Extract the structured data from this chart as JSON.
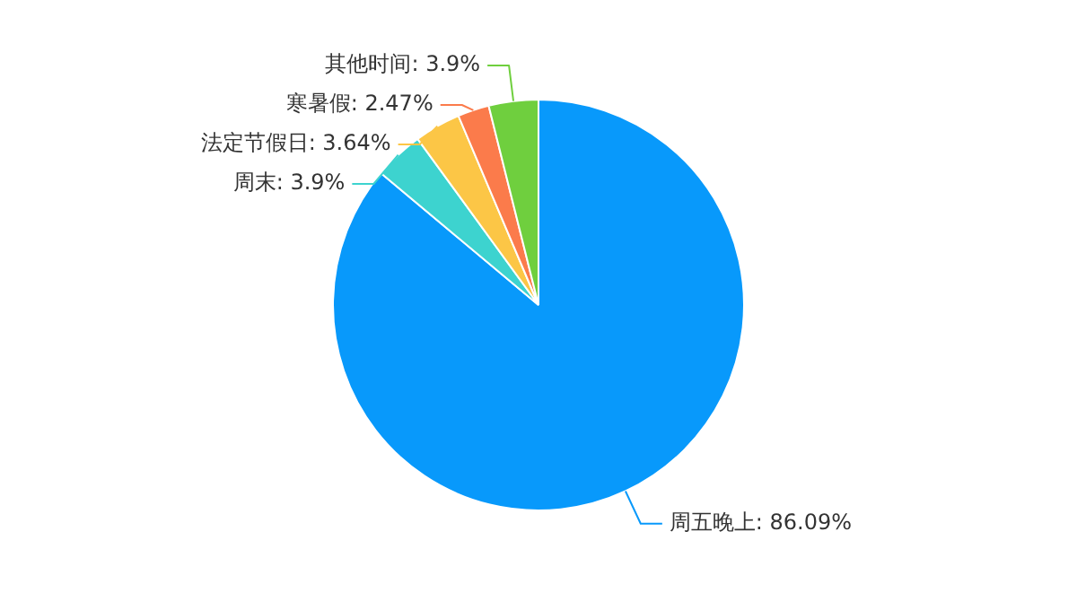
{
  "chart_data": {
    "type": "pie",
    "categories": [
      "周五晚上",
      "周末",
      "法定节假日",
      "寒暑假",
      "其他时间"
    ],
    "values": [
      86.09,
      3.9,
      3.64,
      2.47,
      3.9
    ],
    "value_labels": [
      "86.09%",
      "3.9%",
      "3.64%",
      "2.47%",
      "3.9%"
    ],
    "colors": [
      "#0899fb",
      "#3dd3cf",
      "#fcc646",
      "#fb7b4b",
      "#6fcf3e"
    ],
    "legend": false
  }
}
